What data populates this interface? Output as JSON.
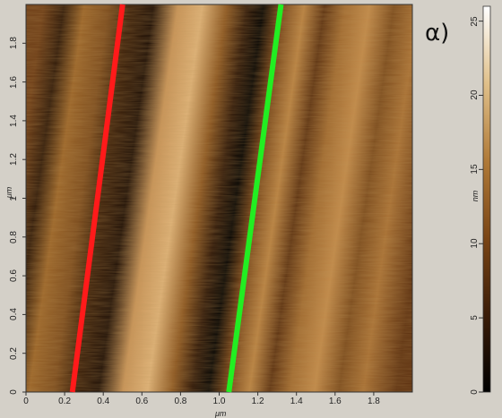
{
  "panel_label": "α)",
  "x_axis": {
    "unit": "μm",
    "ticks": [
      "0",
      "0.2",
      "0.4",
      "0.6",
      "0.8",
      "1.0",
      "1.2",
      "1.4",
      "1.6",
      "1.8"
    ]
  },
  "y_axis": {
    "unit": "μm",
    "ticks": [
      "0",
      "0.2",
      "0.4",
      "0.6",
      "0.8",
      "1",
      "1.2",
      "1.4",
      "1.6",
      "1.8"
    ]
  },
  "colorbar": {
    "unit": "nm",
    "ticks": [
      "0",
      "5",
      "10",
      "15",
      "20",
      "25"
    ],
    "colors": [
      "#000000",
      "#3a1c08",
      "#7a4515",
      "#b07a38",
      "#e0c08a",
      "#ffffff"
    ]
  },
  "profile_lines": [
    {
      "color": "#ff1a1a",
      "x_start": 0.24,
      "y_start": 0,
      "x_end": 0.5,
      "y_end": 2.0
    },
    {
      "color": "#22ee22",
      "x_start": 1.05,
      "y_start": 0,
      "x_end": 1.32,
      "y_end": 2.0
    }
  ],
  "scan_size_um": 2.0
}
